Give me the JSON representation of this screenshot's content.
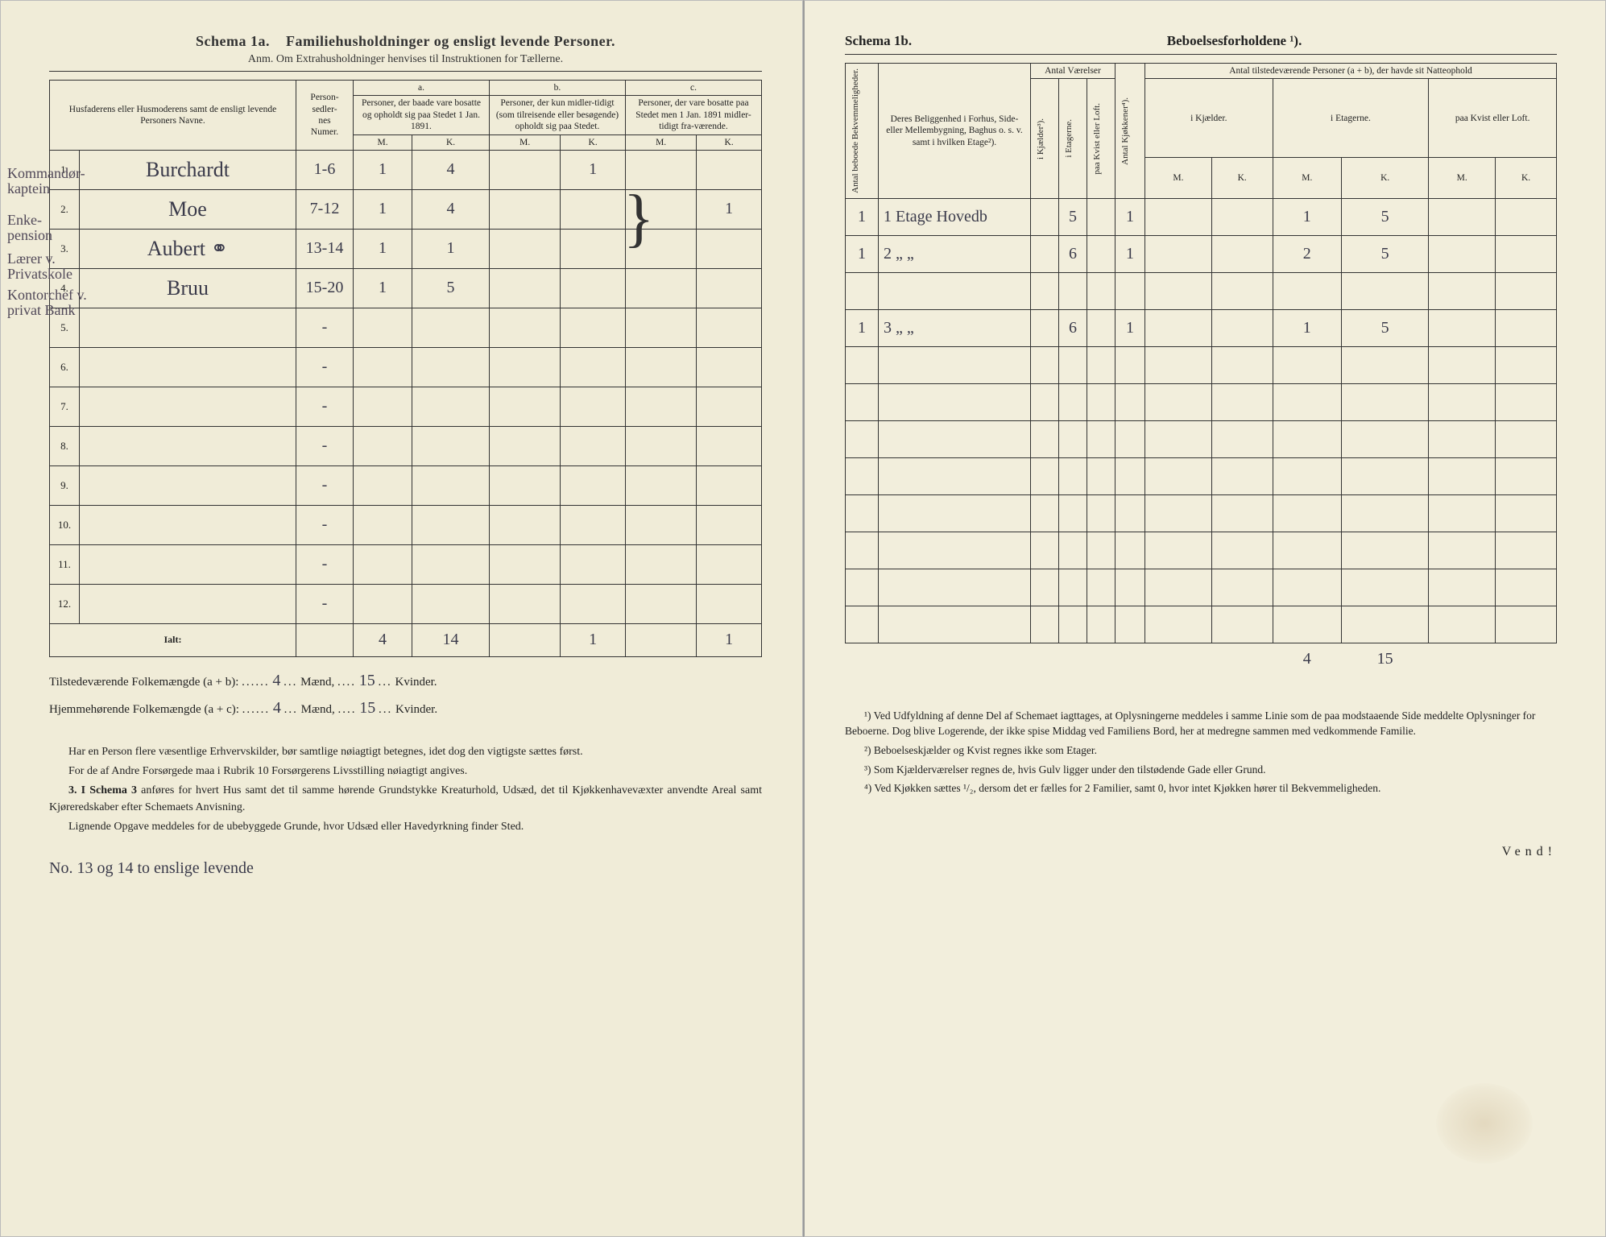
{
  "left": {
    "schema_label": "Schema 1a.",
    "schema_title": "Familiehusholdninger og ensligt levende Personer.",
    "anm": "Anm.  Om Extrahusholdninger henvises til Instruktionen for Tællerne.",
    "col_name": "Husfaderens eller Husmoderens samt de ensligt levende Personers Navne.",
    "col_personnr": "Person-\nsedler-\nnes\nNumer.",
    "col_a_label": "a.",
    "col_a": "Personer, der baade vare bosatte og opholdt sig paa Stedet 1 Jan. 1891.",
    "col_b_label": "b.",
    "col_b": "Personer, der kun midler-tidigt (som tilreisende eller besøgende) opholdt sig paa Stedet.",
    "col_c_label": "c.",
    "col_c": "Personer, der vare bosatte paa Stedet men 1 Jan. 1891 midler-tidigt fra-værende.",
    "mk_m": "M.",
    "mk_k": "K.",
    "margin_notes": [
      "Kommandør-\nkaptein",
      "Enke-\npension",
      "Lærer v.\nPrivatskole",
      "Kontorchef v.\nprivat\nBank"
    ],
    "rows": [
      {
        "n": "1.",
        "name": "Burchardt",
        "nr": "1-6",
        "aM": "1",
        "aK": "4",
        "bM": "",
        "bK": "1",
        "cM": "",
        "cK": ""
      },
      {
        "n": "2.",
        "name": "Moe",
        "nr": "7-12",
        "aM": "1",
        "aK": "4",
        "bM": "",
        "bK": "",
        "cM": "",
        "cK": "1"
      },
      {
        "n": "3.",
        "name": "Aubert           ⚭",
        "nr": "13-14",
        "aM": "1",
        "aK": "1",
        "bM": "",
        "bK": "",
        "cM": "",
        "cK": ""
      },
      {
        "n": "4.",
        "name": "Bruu",
        "nr": "15-20",
        "aM": "1",
        "aK": "5",
        "bM": "",
        "bK": "",
        "cM": "",
        "cK": ""
      },
      {
        "n": "5.",
        "name": "",
        "nr": "-",
        "aM": "",
        "aK": "",
        "bM": "",
        "bK": "",
        "cM": "",
        "cK": ""
      },
      {
        "n": "6.",
        "name": "",
        "nr": "-",
        "aM": "",
        "aK": "",
        "bM": "",
        "bK": "",
        "cM": "",
        "cK": ""
      },
      {
        "n": "7.",
        "name": "",
        "nr": "-",
        "aM": "",
        "aK": "",
        "bM": "",
        "bK": "",
        "cM": "",
        "cK": ""
      },
      {
        "n": "8.",
        "name": "",
        "nr": "-",
        "aM": "",
        "aK": "",
        "bM": "",
        "bK": "",
        "cM": "",
        "cK": ""
      },
      {
        "n": "9.",
        "name": "",
        "nr": "-",
        "aM": "",
        "aK": "",
        "bM": "",
        "bK": "",
        "cM": "",
        "cK": ""
      },
      {
        "n": "10.",
        "name": "",
        "nr": "-",
        "aM": "",
        "aK": "",
        "bM": "",
        "bK": "",
        "cM": "",
        "cK": ""
      },
      {
        "n": "11.",
        "name": "",
        "nr": "-",
        "aM": "",
        "aK": "",
        "bM": "",
        "bK": "",
        "cM": "",
        "cK": ""
      },
      {
        "n": "12.",
        "name": "",
        "nr": "-",
        "aM": "",
        "aK": "",
        "bM": "",
        "bK": "",
        "cM": "",
        "cK": ""
      }
    ],
    "ialt_label": "Ialt:",
    "ialt": {
      "aM": "4",
      "aK": "14",
      "bM": "",
      "bK": "1",
      "cM": "",
      "cK": "1"
    },
    "tilstede_label": "Tilstedeværende Folkemængde (a + b):",
    "hjemme_label": "Hjemmehørende Folkemængde (a + c):",
    "maend": "Mænd,",
    "kvinder": "Kvinder.",
    "tot_tilstede_m": "4",
    "tot_tilstede_k": "15",
    "tot_hjemme_m": "4",
    "tot_hjemme_k": "15",
    "foot1": "Har en Person flere væsentlige Erhvervskilder, bør samtlige nøiagtigt betegnes, idet dog den vigtigste sættes først.",
    "foot2": "For de af Andre Forsørgede maa i Rubrik 10 Forsørgerens Livsstilling nøiagtigt angives.",
    "foot3_lead": "3.  I Schema 3",
    "foot3": " anføres for hvert Hus samt det til samme hørende Grundstykke Kreaturhold, Udsæd, det til Kjøkkenhavevæxter anvendte Areal samt Kjøreredskaber efter Schemaets Anvisning.",
    "foot4": "Lignende Opgave meddeles for de ubebyggede Grunde, hvor Udsæd eller Havedyrkning finder Sted.",
    "bottom_hand": "No. 13 og 14 to enslige levende"
  },
  "right": {
    "schema_label": "Schema 1b.",
    "schema_title": "Beboelsesforholdene ¹).",
    "col_antal_bekv": "Antal beboede\nBekvemmeligheder.",
    "col_beligg": "Deres Beliggenhed i Forhus, Side- eller Mellembygning, Baghus o. s. v. samt i hvilken Etage²).",
    "col_vaer": "Antal Værelser",
    "col_vaer_sub": [
      "i Kjælder³).",
      "i Etagerne.",
      "paa Kvist eller Loft."
    ],
    "col_kjok": "Antal Kjøkkener⁴).",
    "col_tilstede": "Antal tilstedeværende Personer (a + b), der havde sit Natteophold",
    "col_tilstede_sub": [
      "i Kjælder.",
      "i Etagerne.",
      "paa Kvist eller Loft."
    ],
    "mk_m": "M.",
    "mk_k": "K.",
    "rows": [
      {
        "ab": "1",
        "bel": "1 Etage Hovedb",
        "kj": "",
        "et": "5",
        "kv": "",
        "kjok": "1",
        "km": "",
        "kk": "",
        "em": "1",
        "ek": "5",
        "lm": "",
        "lk": ""
      },
      {
        "ab": "1",
        "bel": "2   „        „",
        "kj": "",
        "et": "6",
        "kv": "",
        "kjok": "1",
        "km": "",
        "kk": "",
        "em": "2",
        "ek": "5",
        "lm": "",
        "lk": ""
      },
      {
        "ab": "",
        "bel": "",
        "kj": "",
        "et": "",
        "kv": "",
        "kjok": "",
        "km": "",
        "kk": "",
        "em": "",
        "ek": "",
        "lm": "",
        "lk": ""
      },
      {
        "ab": "1",
        "bel": "3   „        „",
        "kj": "",
        "et": "6",
        "kv": "",
        "kjok": "1",
        "km": "",
        "kk": "",
        "em": "1",
        "ek": "5",
        "lm": "",
        "lk": ""
      },
      {
        "ab": "",
        "bel": "",
        "kj": "",
        "et": "",
        "kv": "",
        "kjok": "",
        "km": "",
        "kk": "",
        "em": "",
        "ek": "",
        "lm": "",
        "lk": ""
      },
      {
        "ab": "",
        "bel": "",
        "kj": "",
        "et": "",
        "kv": "",
        "kjok": "",
        "km": "",
        "kk": "",
        "em": "",
        "ek": "",
        "lm": "",
        "lk": ""
      },
      {
        "ab": "",
        "bel": "",
        "kj": "",
        "et": "",
        "kv": "",
        "kjok": "",
        "km": "",
        "kk": "",
        "em": "",
        "ek": "",
        "lm": "",
        "lk": ""
      },
      {
        "ab": "",
        "bel": "",
        "kj": "",
        "et": "",
        "kv": "",
        "kjok": "",
        "km": "",
        "kk": "",
        "em": "",
        "ek": "",
        "lm": "",
        "lk": ""
      },
      {
        "ab": "",
        "bel": "",
        "kj": "",
        "et": "",
        "kv": "",
        "kjok": "",
        "km": "",
        "kk": "",
        "em": "",
        "ek": "",
        "lm": "",
        "lk": ""
      },
      {
        "ab": "",
        "bel": "",
        "kj": "",
        "et": "",
        "kv": "",
        "kjok": "",
        "km": "",
        "kk": "",
        "em": "",
        "ek": "",
        "lm": "",
        "lk": ""
      },
      {
        "ab": "",
        "bel": "",
        "kj": "",
        "et": "",
        "kv": "",
        "kjok": "",
        "km": "",
        "kk": "",
        "em": "",
        "ek": "",
        "lm": "",
        "lk": ""
      },
      {
        "ab": "",
        "bel": "",
        "kj": "",
        "et": "",
        "kv": "",
        "kjok": "",
        "km": "",
        "kk": "",
        "em": "",
        "ek": "",
        "lm": "",
        "lk": ""
      }
    ],
    "sum_em": "4",
    "sum_ek": "15",
    "fn1": "¹) Ved Udfyldning af denne Del af Schemaet iagttages, at Oplysningerne meddeles i samme Linie som de paa modstaaende Side meddelte Oplysninger for Beboerne. Dog blive Logerende, der ikke spise Middag ved Familiens Bord, her at medregne sammen med vedkommende Familie.",
    "fn2": "²) Beboelseskjælder og Kvist regnes ikke som Etager.",
    "fn3": "³) Som Kjælderværelser regnes de, hvis Gulv ligger under den tilstødende Gade eller Grund.",
    "fn4": "⁴) Ved Kjøkken sættes ¹/₂, dersom det er fælles for 2 Familier, samt 0, hvor intet Kjøkken hører til Bekvemmeligheden.",
    "vend": "Vend!"
  }
}
